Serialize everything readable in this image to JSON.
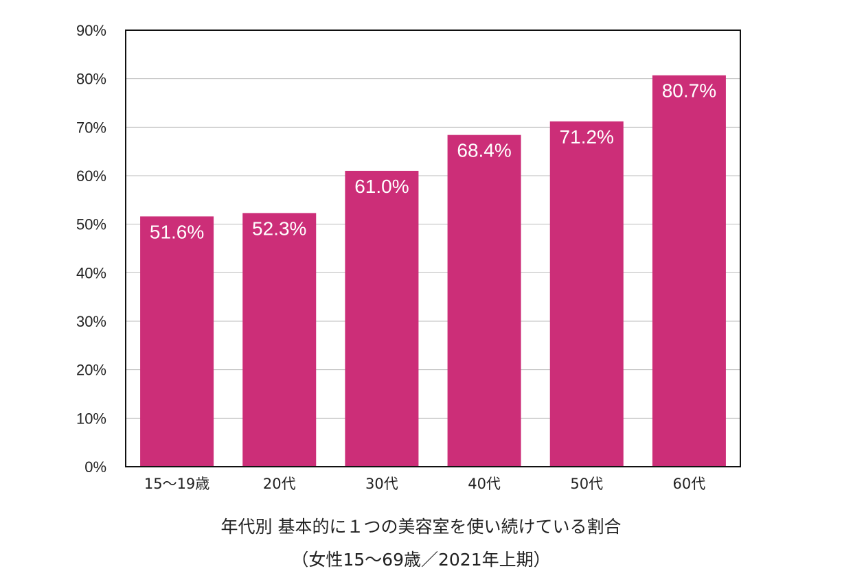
{
  "chart_data": {
    "type": "bar",
    "title": "年代別 基本的に１つの美容室を使い続けている割合",
    "subtitle": "（女性15〜69歳／2021年上期）",
    "categories": [
      "15〜19歳",
      "20代",
      "30代",
      "40代",
      "50代",
      "60代"
    ],
    "values": [
      51.6,
      52.3,
      61.0,
      68.4,
      71.2,
      80.7
    ],
    "data_labels": [
      "51.6%",
      "52.3%",
      "61.0%",
      "68.4%",
      "71.2%",
      "80.7%"
    ],
    "ylim": [
      0,
      90
    ],
    "yticks": [
      0,
      10,
      20,
      30,
      40,
      50,
      60,
      70,
      80,
      90
    ],
    "ytick_labels": [
      "0%",
      "10%",
      "20%",
      "30%",
      "40%",
      "50%",
      "60%",
      "70%",
      "80%",
      "90%"
    ],
    "xlabel": "",
    "ylabel": "",
    "grid": true,
    "legend": "none",
    "colors": {
      "bar": "#cc2e78",
      "grid": "#bbbbbb",
      "frame": "#111111"
    }
  }
}
